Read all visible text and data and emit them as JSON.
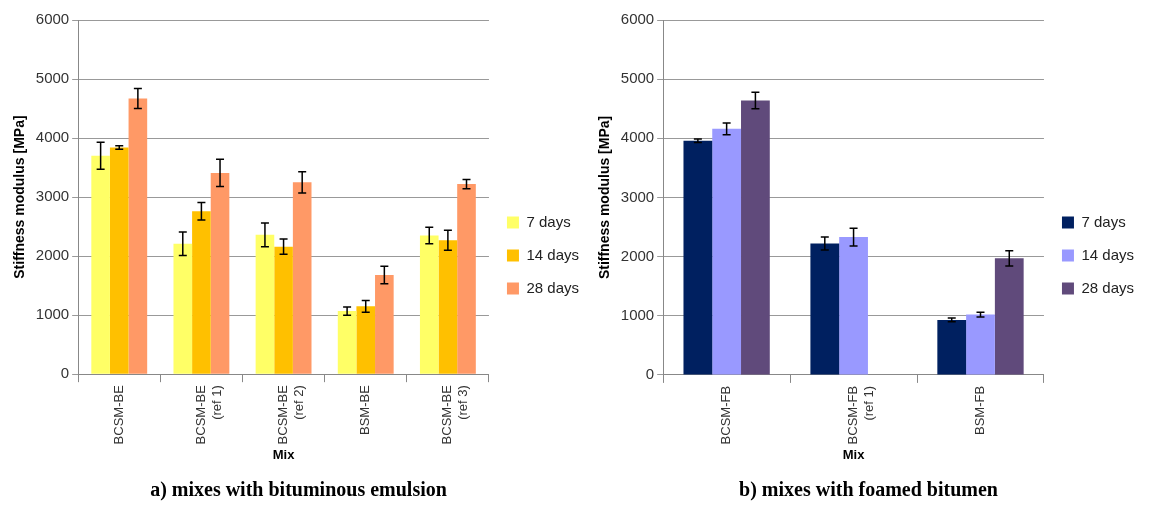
{
  "chart_data": [
    {
      "type": "bar",
      "title": "a) mixes with bituminous emulsion",
      "xlabel": "Mix",
      "ylabel": "Stiffness modulus [MPa]",
      "categories": [
        "BCSM-BE",
        "BCSM-BE (ref 1)",
        "BCSM-BE (ref 2)",
        "BSM-BE",
        "BCSM-BE (ref 3)"
      ],
      "series": [
        {
          "name": "7 days",
          "color": "#ffff66",
          "values": [
            3700,
            2210,
            2360,
            1070,
            2350
          ],
          "errors": [
            230,
            200,
            200,
            70,
            140
          ]
        },
        {
          "name": "14 days",
          "color": "#ffc000",
          "values": [
            3840,
            2760,
            2160,
            1150,
            2270
          ],
          "errors": [
            30,
            150,
            130,
            100,
            170
          ]
        },
        {
          "name": "28 days",
          "color": "#ff9966",
          "values": [
            4670,
            3410,
            3250,
            1680,
            3220
          ],
          "errors": [
            170,
            230,
            180,
            150,
            80
          ]
        }
      ],
      "ylim": [
        0,
        6000
      ],
      "yticks": [
        0,
        1000,
        2000,
        3000,
        4000,
        5000,
        6000
      ],
      "grid": "y",
      "legend": "right"
    },
    {
      "type": "bar",
      "title": "b) mixes with foamed bitumen",
      "xlabel": "Mix",
      "ylabel": "Stiffness modulus [MPa]",
      "categories": [
        "BCSM-FB",
        "BCSM-FB (ref 1)",
        "BSM-FB"
      ],
      "series": [
        {
          "name": "7 days",
          "color": "#002060",
          "values": [
            3960,
            2220,
            930
          ],
          "errors": [
            30,
            110,
            30
          ]
        },
        {
          "name": "14 days",
          "color": "#9999ff",
          "values": [
            4160,
            2330,
            1020
          ],
          "errors": [
            100,
            150,
            40
          ]
        },
        {
          "name": "28 days",
          "color": "#604a7b",
          "values": [
            4640,
            null,
            1970
          ],
          "errors": [
            140,
            null,
            130
          ]
        }
      ],
      "ylim": [
        0,
        6000
      ],
      "yticks": [
        0,
        1000,
        2000,
        3000,
        4000,
        5000,
        6000
      ],
      "grid": "y",
      "legend": "right"
    }
  ]
}
